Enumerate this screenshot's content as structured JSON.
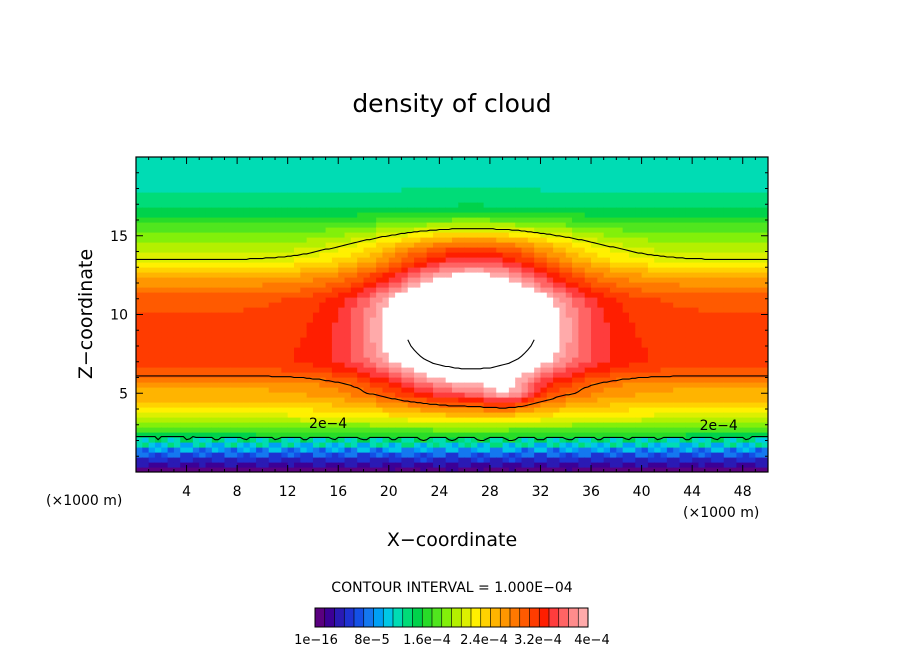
{
  "chart_data": {
    "type": "heatmap",
    "title": "density of cloud",
    "xlabel": "X−coordinate",
    "ylabel": "Z−coordinate",
    "x_unit": "(×1000 m)",
    "x_unit_right": "(×1000 m)",
    "xlim": [
      0,
      50
    ],
    "ylim": [
      0,
      20
    ],
    "x_ticks": [
      4,
      8,
      12,
      16,
      20,
      24,
      28,
      32,
      36,
      40,
      44,
      48
    ],
    "x_tick_labels": [
      "4",
      "8",
      "12",
      "16",
      "20",
      "24",
      "28",
      "32",
      "36",
      "40",
      "44",
      "48"
    ],
    "y_ticks": [
      5,
      10,
      15
    ],
    "y_tick_labels": [
      "5",
      "10",
      "15"
    ],
    "contour_interval_text": "CONTOUR INTERVAL = 1.000E−04",
    "contour_levels": [
      0.0002,
      0.0004,
      0.0006
    ],
    "contour_labels": [
      {
        "text": "2e−4",
        "x": 15.2,
        "y": 3.1
      },
      {
        "text": "2e−4",
        "x": 46.1,
        "y": 3.0
      }
    ],
    "colorbar": {
      "colors": [
        "#5a0080",
        "#3c0096",
        "#2a1ab4",
        "#1e32d2",
        "#1450e6",
        "#1478f0",
        "#00a0f5",
        "#00c8e6",
        "#00dcb4",
        "#00dc78",
        "#00d24b",
        "#28dc28",
        "#50e61e",
        "#82f00a",
        "#b4f000",
        "#dcf000",
        "#fff000",
        "#ffd200",
        "#ffb400",
        "#ff9600",
        "#ff7800",
        "#ff5a00",
        "#ff3c00",
        "#ff1e00",
        "#ff3c3c",
        "#ff6464",
        "#ff8c8c",
        "#ffaaaa"
      ],
      "labels": [
        "1e−16",
        "8e−5",
        "1.6e−4",
        "2.4e−4",
        "3.2e−4",
        "4e−4"
      ]
    },
    "field_description_points": {
      "bands_z": [
        0.2,
        0.9,
        1.3,
        1.7,
        2.2,
        2.8,
        3.2,
        3.8,
        4.4,
        5.0,
        7.0,
        11.0,
        12.5,
        13.5,
        15.5,
        17.0,
        19.0
      ],
      "band_values": [
        3e-05,
        8e-05,
        0.00012,
        0.00016,
        0.0002,
        0.00024,
        0.00028,
        0.00032,
        0.00036,
        0.0004,
        0.00044,
        0.00042,
        0.00036,
        0.0003,
        0.00024,
        0.00018,
        0.00016
      ]
    }
  }
}
